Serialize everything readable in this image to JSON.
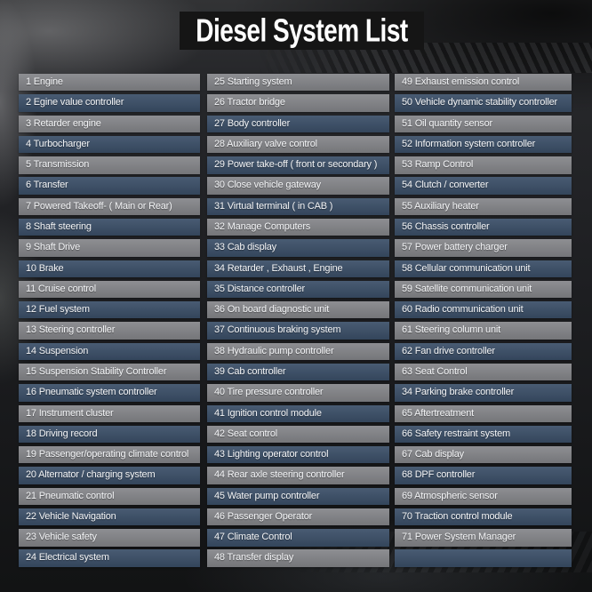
{
  "header": {
    "title": "Diesel System List"
  },
  "colors": {
    "title_bg": "#151515",
    "row_gray": "#85868a",
    "row_blue": "#3b4f68",
    "text": "#f4f5f7"
  },
  "list": {
    "columns": [
      {
        "name": "column-1",
        "items": [
          {
            "text": "1 Engine",
            "variant": "gray"
          },
          {
            "text": "2 Egine value controller",
            "variant": "blue"
          },
          {
            "text": "3 Retarder engine",
            "variant": "gray"
          },
          {
            "text": "4 Turbocharger",
            "variant": "blue"
          },
          {
            "text": "5 Transmission",
            "variant": "gray"
          },
          {
            "text": "6 Transfer",
            "variant": "blue"
          },
          {
            "text": "7 Powered Takeoff- ( Main or Rear)",
            "variant": "gray"
          },
          {
            "text": "8 Shaft steering",
            "variant": "blue"
          },
          {
            "text": "9 Shaft Drive",
            "variant": "gray"
          },
          {
            "text": "10 Brake",
            "variant": "blue"
          },
          {
            "text": "11 Cruise control",
            "variant": "gray"
          },
          {
            "text": "12 Fuel system",
            "variant": "blue"
          },
          {
            "text": "13 Steering controller",
            "variant": "gray"
          },
          {
            "text": "14 Suspension",
            "variant": "blue"
          },
          {
            "text": "15 Suspension Stability Controller",
            "variant": "gray"
          },
          {
            "text": "16 Pneumatic system controller",
            "variant": "blue"
          },
          {
            "text": "17 Instrument cluster",
            "variant": "gray"
          },
          {
            "text": "18 Driving record",
            "variant": "blue"
          },
          {
            "text": "19 Passenger/operating climate control",
            "variant": "gray"
          },
          {
            "text": "20 Alternator / charging system",
            "variant": "blue"
          },
          {
            "text": "21 Pneumatic control",
            "variant": "gray"
          },
          {
            "text": "22 Vehicle Navigation",
            "variant": "blue"
          },
          {
            "text": "23 Vehicle safety",
            "variant": "gray"
          },
          {
            "text": "24 Electrical system",
            "variant": "blue"
          }
        ]
      },
      {
        "name": "column-2",
        "items": [
          {
            "text": "25 Starting system",
            "variant": "gray"
          },
          {
            "text": "26 Tractor bridge",
            "variant": "gray"
          },
          {
            "text": "27 Body controller",
            "variant": "blue"
          },
          {
            "text": "28 Auxiliary valve control",
            "variant": "gray"
          },
          {
            "text": "29 Power take-off ( front or secondary )",
            "variant": "blue"
          },
          {
            "text": "30 Close vehicle gateway",
            "variant": "gray"
          },
          {
            "text": "31 Virtual terminal ( in CAB )",
            "variant": "blue"
          },
          {
            "text": "32 Manage Computers",
            "variant": "gray"
          },
          {
            "text": "33 Cab display",
            "variant": "blue"
          },
          {
            "text": "34 Retarder , Exhaust , Engine",
            "variant": "blue"
          },
          {
            "text": "35 Distance controller",
            "variant": "blue"
          },
          {
            "text": "36 On board diagnostic unit",
            "variant": "gray"
          },
          {
            "text": "37 Continuous braking system",
            "variant": "blue"
          },
          {
            "text": "38 Hydraulic pump controller",
            "variant": "gray"
          },
          {
            "text": "39 Cab controller",
            "variant": "blue"
          },
          {
            "text": "40 Tire pressure controller",
            "variant": "gray"
          },
          {
            "text": "41 Ignition control module",
            "variant": "blue"
          },
          {
            "text": "42 Seat control",
            "variant": "gray"
          },
          {
            "text": "43 Lighting operator control",
            "variant": "blue"
          },
          {
            "text": "44 Rear axle steering controller",
            "variant": "gray"
          },
          {
            "text": "45 Water pump controller",
            "variant": "blue"
          },
          {
            "text": "46 Passenger Operator",
            "variant": "gray"
          },
          {
            "text": "47 Climate Control",
            "variant": "blue"
          },
          {
            "text": "48 Transfer display",
            "variant": "gray"
          }
        ]
      },
      {
        "name": "column-3",
        "items": [
          {
            "text": "49 Exhaust emission control",
            "variant": "gray"
          },
          {
            "text": "50 Vehicle dynamic stability controller",
            "variant": "blue"
          },
          {
            "text": "51 Oil quantity sensor",
            "variant": "gray"
          },
          {
            "text": "52 Information system controller",
            "variant": "blue"
          },
          {
            "text": "53 Ramp Control",
            "variant": "gray"
          },
          {
            "text": "54 Clutch / converter",
            "variant": "blue"
          },
          {
            "text": "55 Auxiliary heater",
            "variant": "gray"
          },
          {
            "text": "56 Chassis controller",
            "variant": "blue"
          },
          {
            "text": "57 Power battery charger",
            "variant": "gray"
          },
          {
            "text": "58 Cellular communication unit",
            "variant": "blue"
          },
          {
            "text": "59 Satellite communication unit",
            "variant": "gray"
          },
          {
            "text": "60 Radio communication unit",
            "variant": "blue"
          },
          {
            "text": "61 Steering column unit",
            "variant": "gray"
          },
          {
            "text": "62 Fan drive controller",
            "variant": "blue"
          },
          {
            "text": "63 Seat Control",
            "variant": "gray"
          },
          {
            "text": "34 Parking brake controller",
            "variant": "blue"
          },
          {
            "text": "65 Aftertreatment",
            "variant": "gray"
          },
          {
            "text": "66 Safety restraint system",
            "variant": "blue"
          },
          {
            "text": "67 Cab display",
            "variant": "gray"
          },
          {
            "text": "68 DPF controller",
            "variant": "blue"
          },
          {
            "text": "69 Atmospheric sensor",
            "variant": "gray"
          },
          {
            "text": "70 Traction control module",
            "variant": "blue"
          },
          {
            "text": "71 Power System Manager",
            "variant": "gray"
          },
          {
            "text": "",
            "variant": "blue"
          }
        ]
      }
    ]
  }
}
